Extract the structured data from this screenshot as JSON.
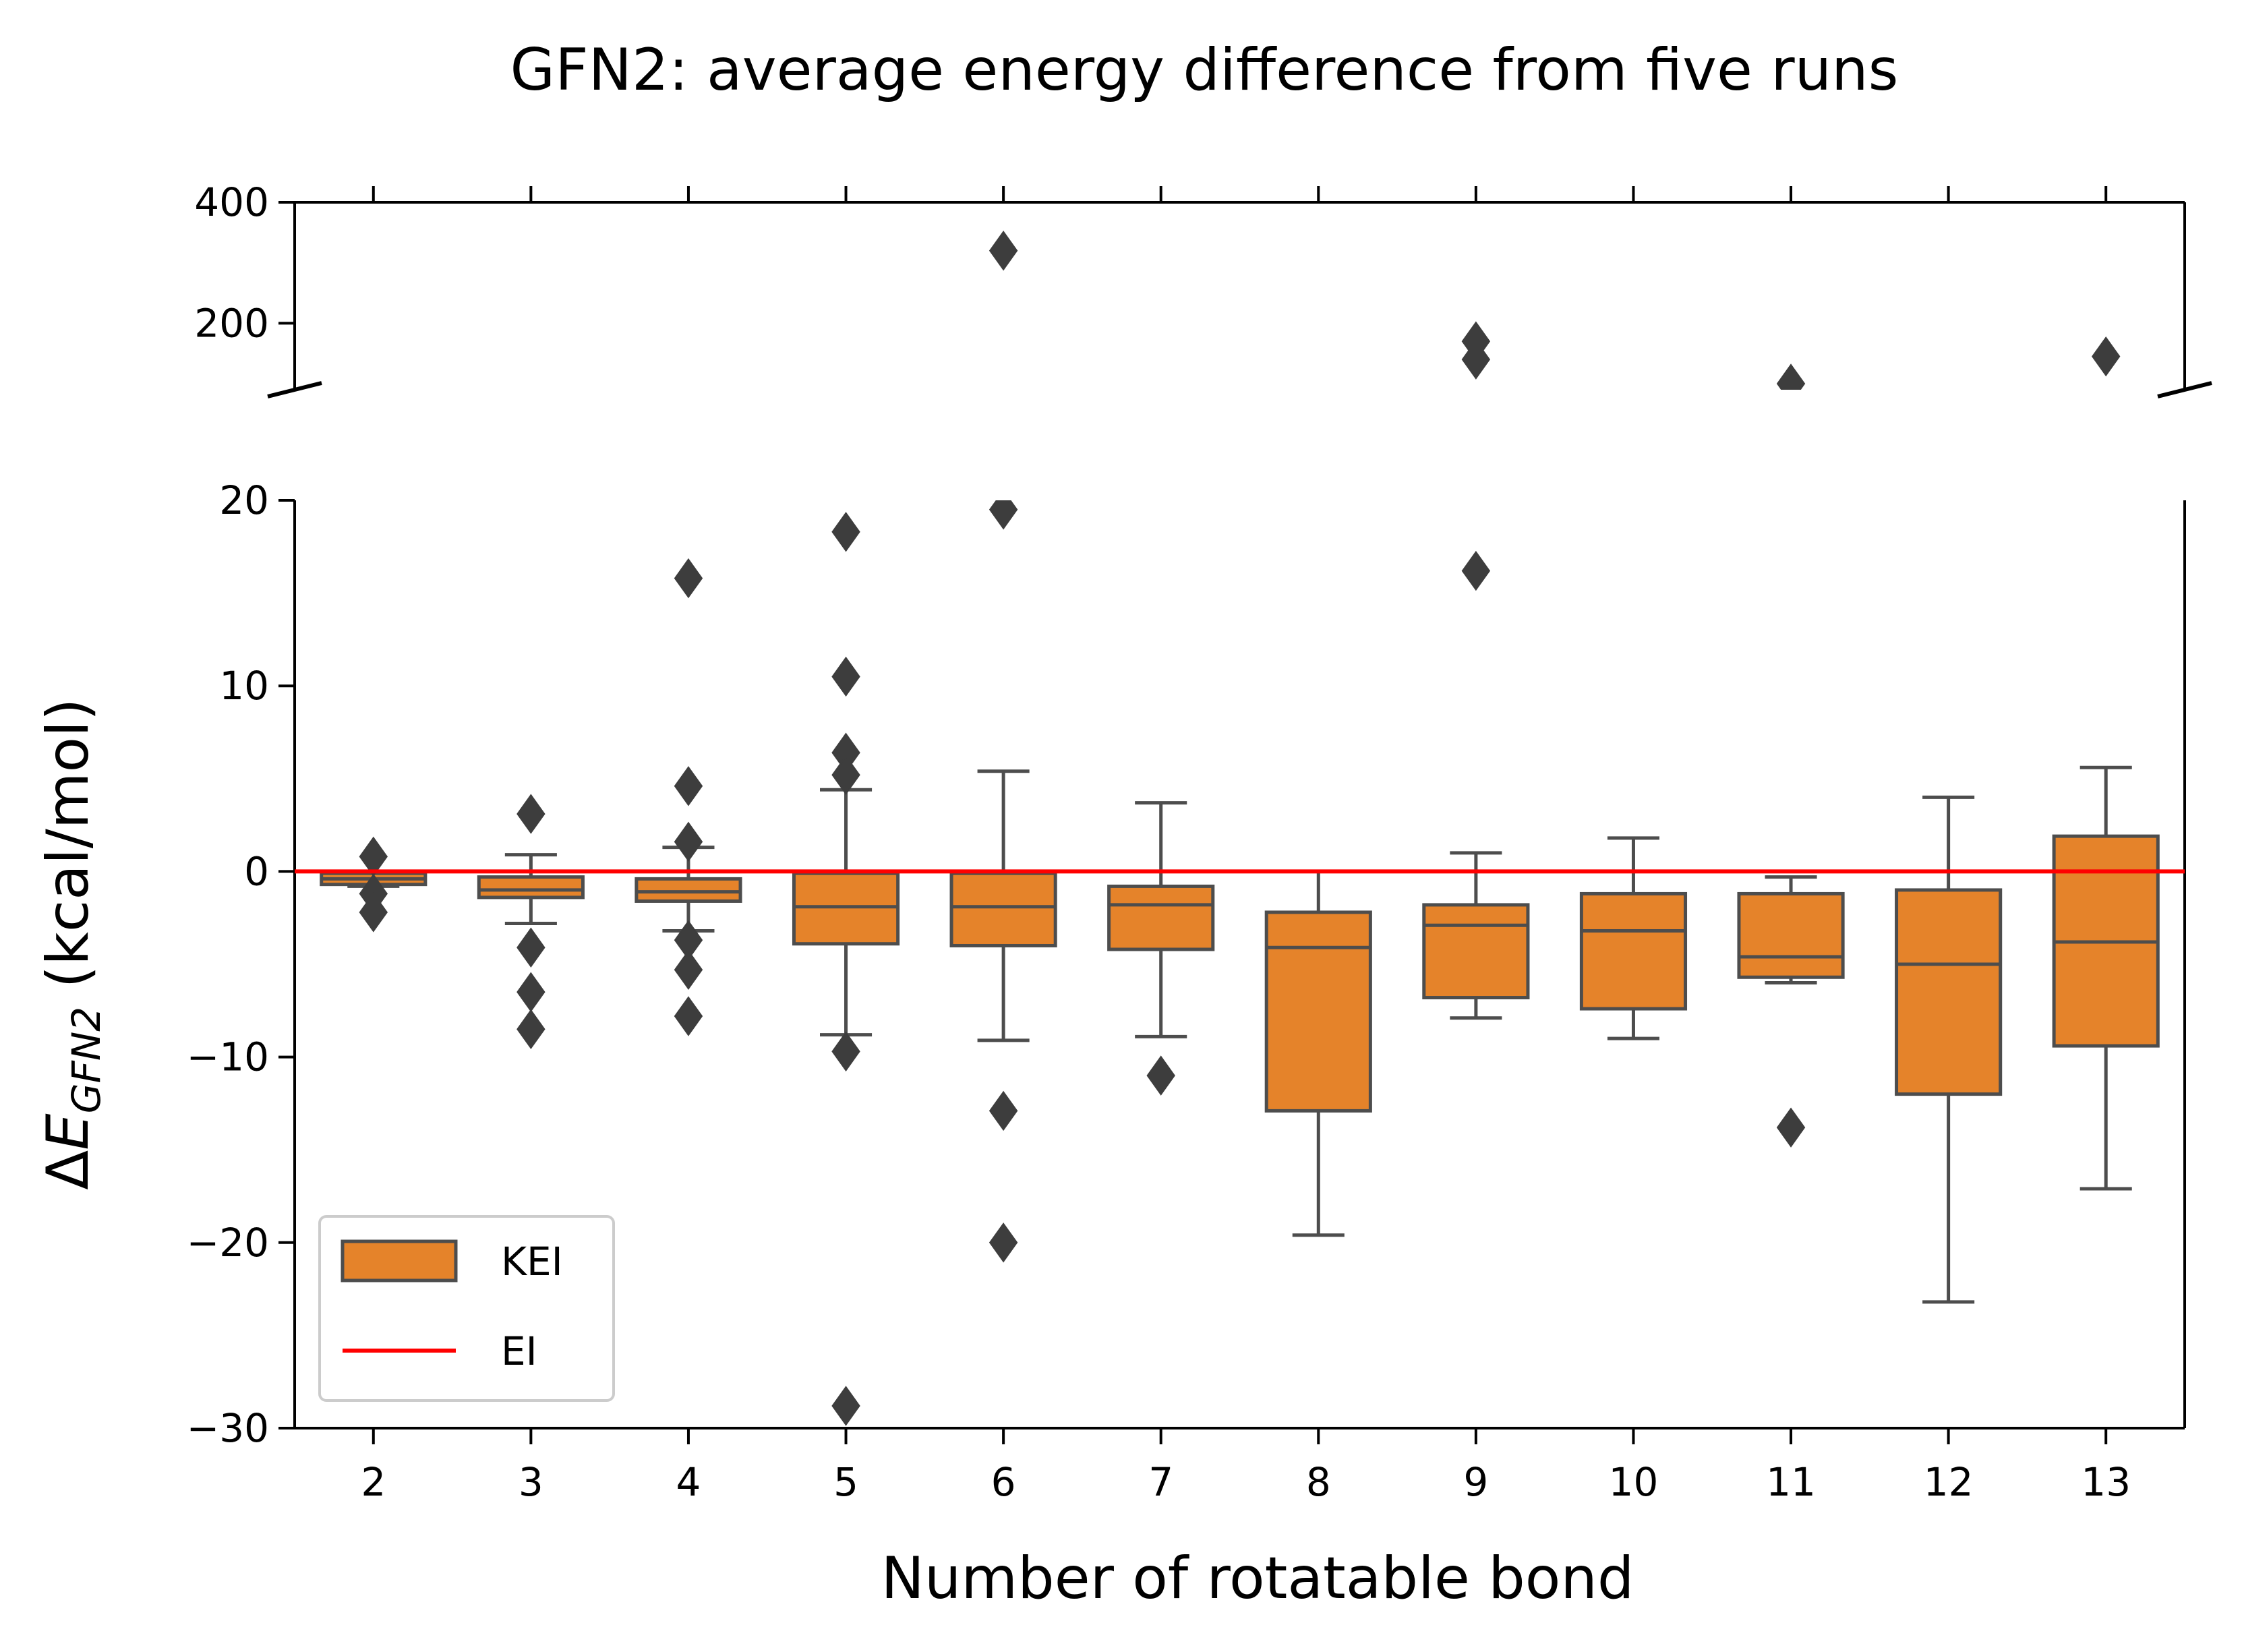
{
  "chart_data": {
    "type": "box",
    "title": "GFN2: average energy difference from five runs",
    "xlabel": "Number of rotatable bond",
    "ylabel": "ΔE_GFN2 (kcal/mol)",
    "ylabel_parts": {
      "delta": "Δ",
      "E": "E",
      "sub": "GFN2",
      "unit": " (kcal/mol)"
    },
    "categories": [
      "2",
      "3",
      "4",
      "5",
      "6",
      "7",
      "8",
      "9",
      "10",
      "11",
      "12",
      "13"
    ],
    "broken_y_axis": true,
    "ylim_lower": [
      -30,
      20
    ],
    "ylim_upper": [
      90,
      400
    ],
    "yticks_lower": [
      "20",
      "10",
      "0",
      "−10",
      "−20",
      "−30"
    ],
    "yticks_lower_values": [
      20,
      10,
      0,
      -10,
      -20,
      -30
    ],
    "yticks_upper": [
      "400",
      "200"
    ],
    "yticks_upper_values": [
      400,
      200
    ],
    "series": [
      {
        "name": "KEI",
        "color": "#e5832a",
        "edge_color": "#4d4d4d",
        "boxes": [
          {
            "q1": -0.7,
            "median": -0.4,
            "q3": -0.1,
            "whisker_low": -0.8,
            "whisker_high": 0.0,
            "outliers": [
              0.8,
              -1.2,
              -2.2
            ]
          },
          {
            "q1": -1.4,
            "median": -1.0,
            "q3": -0.3,
            "whisker_low": -2.8,
            "whisker_high": 0.9,
            "outliers": [
              3.1,
              -4.1,
              -6.5,
              -8.5
            ]
          },
          {
            "q1": -1.6,
            "median": -1.1,
            "q3": -0.4,
            "whisker_low": -3.2,
            "whisker_high": 1.3,
            "outliers": [
              15.8,
              4.6,
              1.6,
              -3.7,
              -5.3,
              -7.8
            ]
          },
          {
            "q1": -3.9,
            "median": -1.9,
            "q3": -0.1,
            "whisker_low": -8.8,
            "whisker_high": 4.4,
            "outliers": [
              18.3,
              10.5,
              6.4,
              5.2,
              -9.7,
              -28.8
            ]
          },
          {
            "q1": -4.0,
            "median": -1.9,
            "q3": -0.1,
            "whisker_low": -9.1,
            "whisker_high": 5.4,
            "outliers": [
              320,
              19.5,
              -12.9,
              -20.0
            ]
          },
          {
            "q1": -4.2,
            "median": -1.8,
            "q3": -0.8,
            "whisker_low": -8.9,
            "whisker_high": 3.7,
            "outliers": [
              -11.0
            ]
          },
          {
            "q1": -12.9,
            "median": -4.1,
            "q3": -2.2,
            "whisker_low": -19.6,
            "whisker_high": 0.0,
            "outliers": []
          },
          {
            "q1": -6.8,
            "median": -2.9,
            "q3": -1.8,
            "whisker_low": -7.9,
            "whisker_high": 1.0,
            "outliers": [
              170,
              140,
              16.2
            ]
          },
          {
            "q1": -7.4,
            "median": -3.2,
            "q3": -1.2,
            "whisker_low": -9.0,
            "whisker_high": 1.8,
            "outliers": []
          },
          {
            "q1": -5.7,
            "median": -4.6,
            "q3": -1.2,
            "whisker_low": -6.0,
            "whisker_high": -0.3,
            "outliers": [
              100,
              -13.8
            ]
          },
          {
            "q1": -12.0,
            "median": -5.0,
            "q3": -1.0,
            "whisker_low": -23.2,
            "whisker_high": 4.0,
            "outliers": []
          },
          {
            "q1": -9.4,
            "median": -3.8,
            "q3": 1.9,
            "whisker_low": -17.1,
            "whisker_high": 5.6,
            "outliers": [
              145
            ]
          }
        ]
      },
      {
        "name": "EI",
        "color": "#ff0000",
        "reference_value": 0
      }
    ],
    "grid": false,
    "legend_position": "lower-left"
  }
}
